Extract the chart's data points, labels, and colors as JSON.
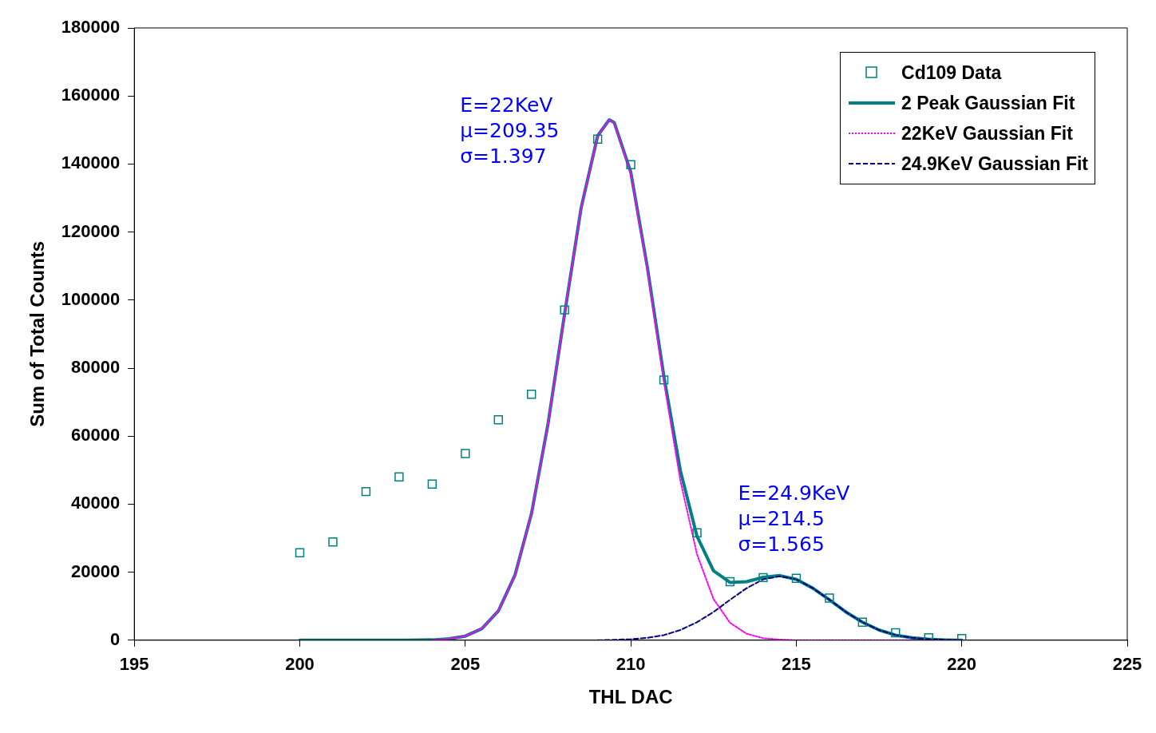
{
  "chart_data": {
    "type": "scatter",
    "xlabel": "THL DAC",
    "ylabel": "Sum of Total Counts",
    "xlim": [
      195,
      225
    ],
    "xticks": [
      195,
      200,
      205,
      210,
      215,
      220,
      225
    ],
    "ylim": [
      0,
      180000
    ],
    "yticks": [
      0,
      20000,
      40000,
      60000,
      80000,
      100000,
      120000,
      140000,
      160000,
      180000
    ],
    "grid": false,
    "legend": "top right",
    "annotations": [
      "E=22KeV\nμ=209.35\nσ=1.397",
      "E=24.9KeV\nμ=214.5\nσ=1.565"
    ],
    "series": [
      {
        "name": "Cd109 Data",
        "marker": "square",
        "color": "#008080",
        "x": [
          200,
          201,
          202,
          203,
          204,
          205,
          206,
          207,
          208,
          209,
          210,
          211,
          212,
          213,
          214,
          215,
          216,
          217,
          218,
          219,
          220
        ],
        "values": [
          25700,
          28900,
          43700,
          48000,
          45900,
          54900,
          64800,
          72300,
          97100,
          147300,
          139800,
          76500,
          31600,
          17200,
          18400,
          18200,
          12400,
          5300,
          2200,
          700,
          500
        ]
      },
      {
        "name": "2 Peak Gaussian Fit",
        "type": "line",
        "marker": "none",
        "line_style": "solid",
        "color": "#008080",
        "x": [
          200,
          203,
          204,
          204.5,
          205,
          205.5,
          206,
          206.5,
          207,
          207.5,
          208,
          208.5,
          209,
          209.35,
          209.5,
          210,
          210.5,
          211,
          211.5,
          212,
          212.5,
          213,
          213.5,
          214,
          214.5,
          215,
          215.5,
          216,
          216.5,
          217,
          217.5,
          218,
          218.5,
          219,
          219.5,
          220
        ],
        "values": [
          0,
          0,
          100,
          400,
          1200,
          3400,
          8600,
          19100,
          37200,
          63600,
          95900,
          127100,
          148300,
          153000,
          152200,
          137600,
          109700,
          77600,
          49800,
          30600,
          20400,
          17000,
          17200,
          18500,
          19000,
          17900,
          15300,
          11900,
          8300,
          5300,
          3000,
          1500,
          700,
          300,
          100,
          0
        ]
      },
      {
        "name": "22KeV Gaussian Fit",
        "type": "line",
        "marker": "none",
        "line_style": "dotted",
        "color": "#ff00ff",
        "x": [
          204,
          204.5,
          205,
          205.5,
          206,
          206.5,
          207,
          207.5,
          208,
          208.5,
          209,
          209.35,
          209.5,
          210,
          210.5,
          211,
          211.5,
          212,
          212.5,
          213,
          213.5,
          214,
          214.5,
          215,
          220
        ],
        "values": [
          100,
          400,
          1200,
          3400,
          8600,
          19100,
          37200,
          63600,
          95900,
          127100,
          148300,
          153000,
          152100,
          137300,
          109000,
          76100,
          46800,
          25300,
          12100,
          5100,
          1900,
          600,
          200,
          0,
          0
        ]
      },
      {
        "name": "24.9KeV Gaussian Fit",
        "type": "line",
        "marker": "none",
        "line_style": "dashed",
        "color": "#000080",
        "x": [
          209,
          209.5,
          210,
          210.5,
          211,
          211.5,
          212,
          212.5,
          213,
          213.5,
          214,
          214.5,
          215,
          215.5,
          216,
          216.5,
          217,
          217.5,
          218,
          218.5,
          219,
          219.5,
          220
        ],
        "values": [
          0,
          100,
          300,
          700,
          1500,
          3000,
          5300,
          8300,
          11900,
          15300,
          17900,
          18800,
          17900,
          15300,
          11900,
          8300,
          5300,
          3000,
          1500,
          700,
          300,
          100,
          0
        ]
      }
    ]
  }
}
